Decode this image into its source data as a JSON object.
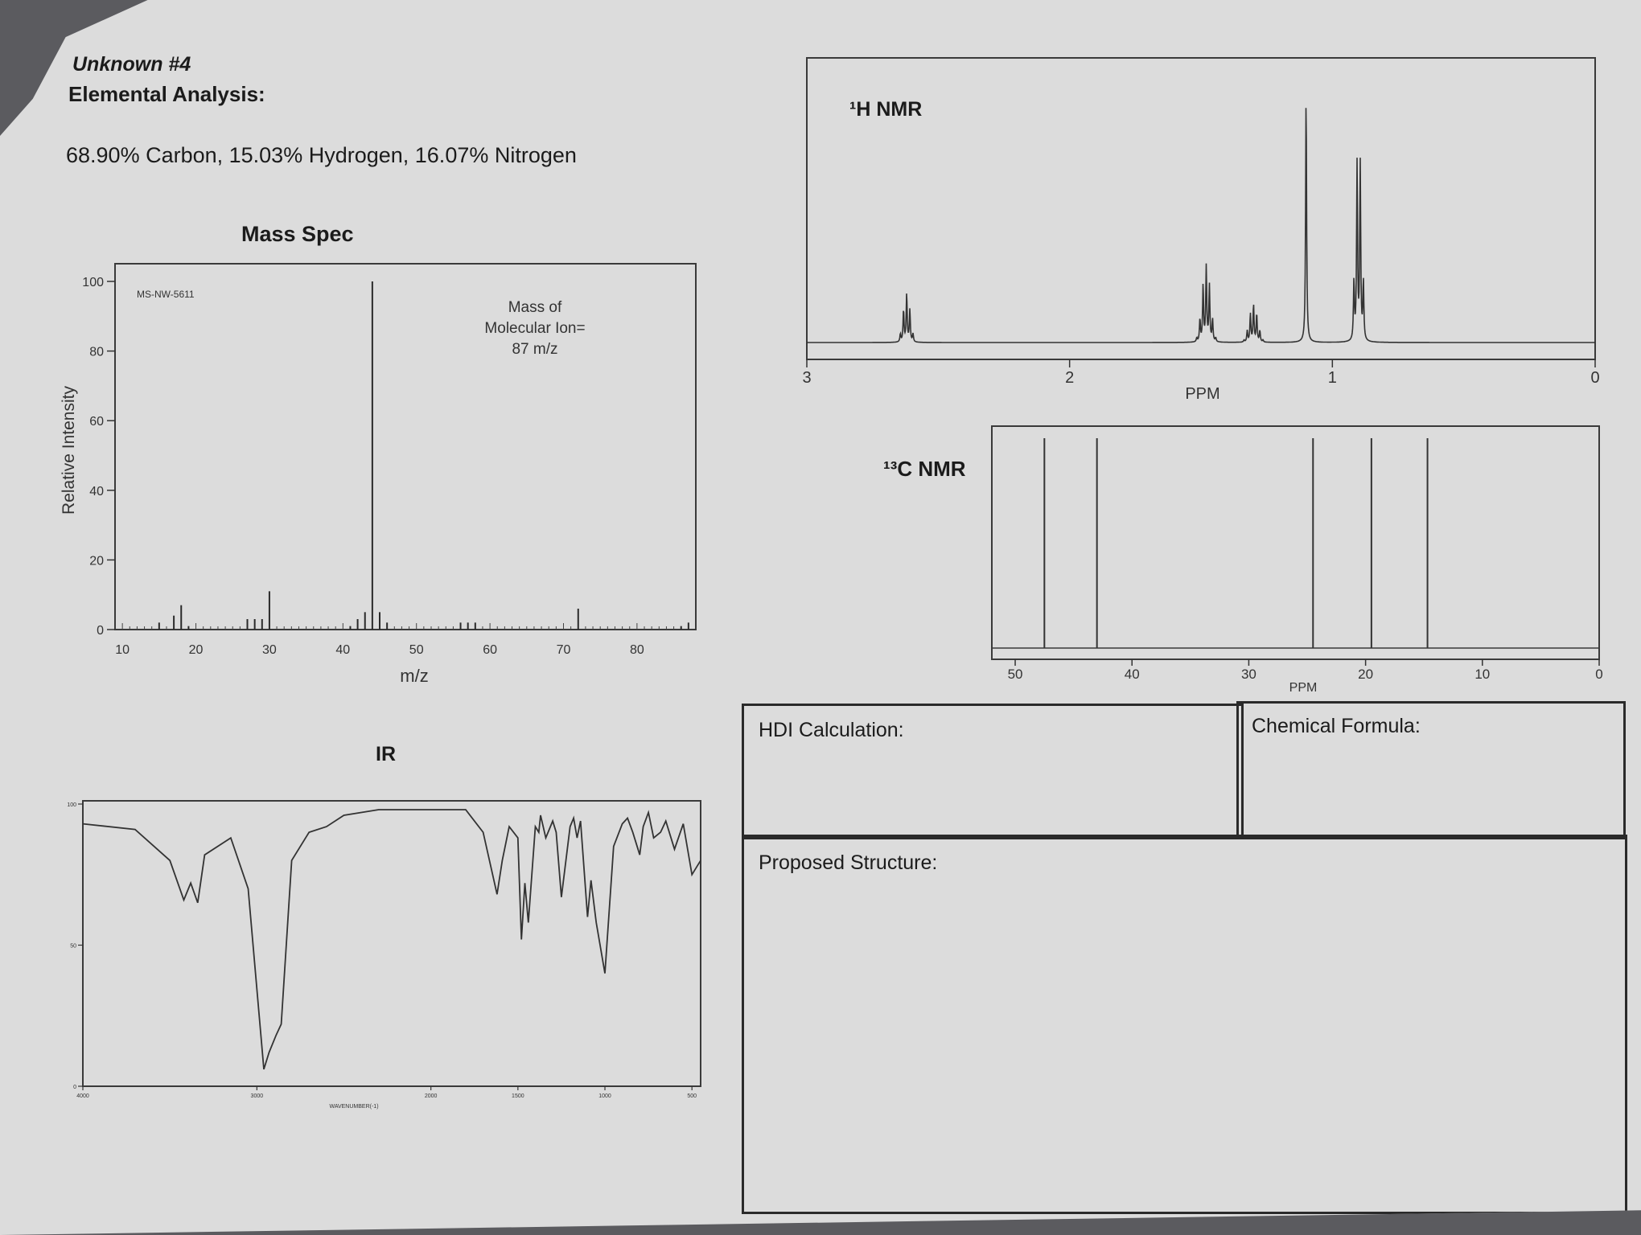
{
  "header": {
    "unknown": "Unknown #4",
    "elemental_title": "Elemental Analysis:",
    "composition": "68.90% Carbon, 15.03% Hydrogen, 16.07% Nitrogen"
  },
  "answer_boxes": {
    "hdi": "HDI Calculation:",
    "formula": "Chemical Formula:",
    "structure": "Proposed Structure:"
  },
  "colors": {
    "paper": "#dcdcdc",
    "ink": "#2a2a2a",
    "background": "#5b5b5f"
  },
  "chart_data": [
    {
      "id": "mass_spec",
      "type": "bar",
      "title": "Mass Spec",
      "code": "MS-NW-5611",
      "annotation": [
        "Mass of",
        "Molecular Ion=",
        "87 m/z"
      ],
      "xlabel": "m/z",
      "ylabel": "Relative Intensity",
      "xlim": [
        9,
        88
      ],
      "ylim": [
        0,
        100
      ],
      "xticks": [
        10,
        20,
        30,
        40,
        50,
        60,
        70,
        80
      ],
      "yticks": [
        0,
        20,
        40,
        60,
        80,
        100
      ],
      "x": [
        15,
        17,
        18,
        19,
        27,
        28,
        29,
        30,
        41,
        42,
        43,
        44,
        45,
        46,
        56,
        57,
        58,
        72,
        86,
        87
      ],
      "values": [
        2,
        4,
        7,
        1,
        3,
        3,
        3,
        11,
        1,
        3,
        5,
        100,
        5,
        2,
        2,
        2,
        2,
        6,
        1,
        2
      ]
    },
    {
      "id": "h_nmr",
      "type": "line",
      "title": "¹H NMR",
      "xlabel": "PPM",
      "xlim": [
        3,
        0
      ],
      "xticks": [
        3,
        2,
        1,
        0
      ],
      "peaks": [
        {
          "ppm": 2.62,
          "mult": 4,
          "height": 0.18
        },
        {
          "ppm": 1.48,
          "mult": 6,
          "height": 0.28
        },
        {
          "ppm": 1.3,
          "mult": 6,
          "height": 0.14
        },
        {
          "ppm": 1.1,
          "mult": 1,
          "height": 0.92
        },
        {
          "ppm": 0.9,
          "mult": 3,
          "height": 0.66
        }
      ]
    },
    {
      "id": "c_nmr",
      "type": "bar",
      "title": "¹³C NMR",
      "xlabel": "PPM",
      "xlim": [
        52,
        0
      ],
      "xticks": [
        50,
        40,
        30,
        20,
        10,
        0
      ],
      "x": [
        47.5,
        43,
        24.5,
        19.5,
        14.7
      ],
      "values": [
        1,
        1,
        1,
        1,
        1
      ]
    },
    {
      "id": "ir",
      "type": "line",
      "title": "IR",
      "xlabel": "WAVENUMBER(-1)",
      "xlim": [
        4000,
        450
      ],
      "ylim": [
        0,
        100
      ],
      "xticks": [
        4000,
        3000,
        2000,
        1500,
        1000,
        500
      ],
      "yticks": [
        0,
        50,
        100
      ],
      "x": [
        4000,
        3700,
        3500,
        3420,
        3380,
        3340,
        3300,
        3150,
        3050,
        2960,
        2930,
        2890,
        2860,
        2800,
        2700,
        2600,
        2500,
        2300,
        2000,
        1800,
        1700,
        1620,
        1590,
        1550,
        1500,
        1480,
        1460,
        1440,
        1400,
        1380,
        1370,
        1340,
        1300,
        1280,
        1250,
        1200,
        1180,
        1160,
        1140,
        1100,
        1080,
        1050,
        1000,
        950,
        900,
        870,
        840,
        800,
        780,
        750,
        720,
        680,
        650,
        600,
        550,
        500,
        450
      ],
      "values": [
        93,
        91,
        80,
        66,
        72,
        65,
        82,
        88,
        70,
        6,
        12,
        18,
        22,
        80,
        90,
        92,
        96,
        98,
        98,
        98,
        90,
        68,
        80,
        92,
        88,
        52,
        72,
        58,
        92,
        90,
        96,
        88,
        94,
        90,
        67,
        92,
        95,
        88,
        94,
        60,
        73,
        58,
        40,
        85,
        93,
        95,
        90,
        82,
        92,
        97,
        88,
        90,
        94,
        84,
        93,
        75,
        80
      ]
    }
  ]
}
